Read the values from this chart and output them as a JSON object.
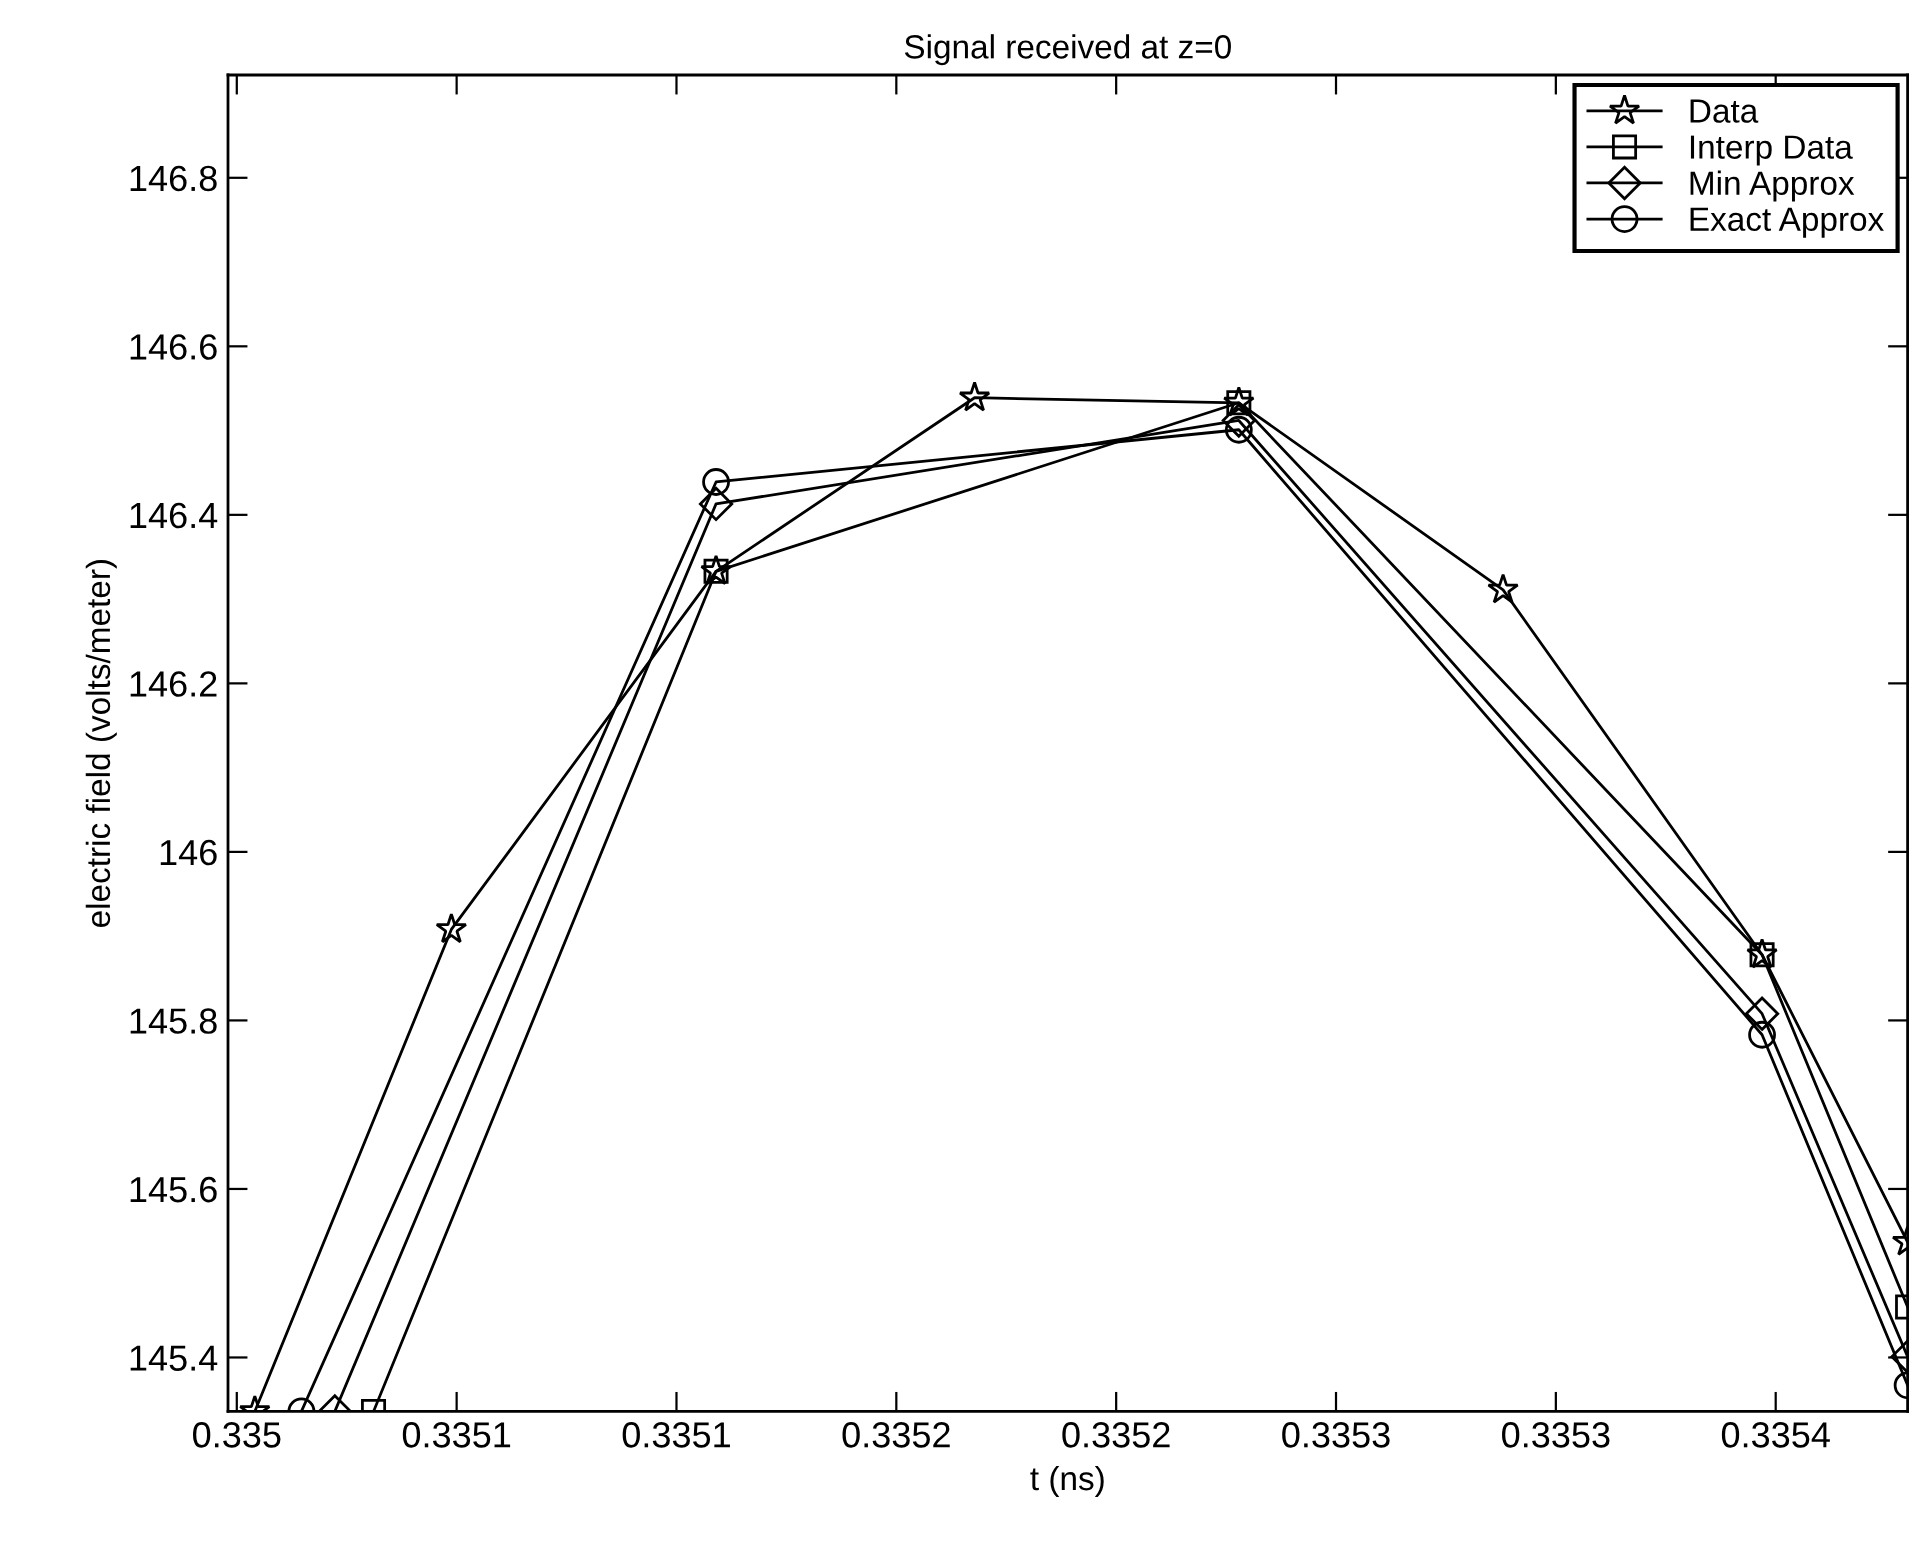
{
  "chart_data": {
    "type": "line",
    "title": "Signal received at z=0",
    "xlabel": "t (ns)",
    "ylabel": "electric field (volts/meter)",
    "xlim": [
      0.334998,
      0.33538
    ],
    "xticks": [
      {
        "value": 0.335,
        "label": "0.335"
      },
      {
        "value": 0.33505,
        "label": "0.3351"
      },
      {
        "value": 0.3351,
        "label": "0.3351"
      },
      {
        "value": 0.33515,
        "label": "0.3352"
      },
      {
        "value": 0.3352,
        "label": "0.3352"
      },
      {
        "value": 0.33525,
        "label": "0.3353"
      },
      {
        "value": 0.3353,
        "label": "0.3353"
      },
      {
        "value": 0.33535,
        "label": "0.3354"
      }
    ],
    "ylim": [
      145.336,
      146.922
    ],
    "yticks": [
      145.4,
      145.6,
      145.8,
      {
        "value": 146,
        "label": "146"
      },
      146.2,
      146.4,
      146.6,
      146.8
    ],
    "grid": false,
    "legend": "top right",
    "line_style": "solid",
    "series": [
      {
        "name": "Data",
        "color": "#000000",
        "marker": "star",
        "x": [
          0.3350041,
          0.3350488,
          0.335109,
          0.3351678,
          0.3352279,
          0.335288,
          0.3353469,
          0.33538
        ],
        "values": [
          145.336,
          145.908,
          146.333,
          146.539,
          146.533,
          146.311,
          145.878,
          145.537
        ]
      },
      {
        "name": "Interp Data",
        "color": "#000000",
        "marker": "square",
        "x": [
          0.3350311,
          0.335109,
          0.3352279,
          0.3353469,
          0.33538
        ],
        "values": [
          145.336,
          146.333,
          146.533,
          145.878,
          145.46
        ]
      },
      {
        "name": "Min Approx",
        "color": "#000000",
        "marker": "diamond",
        "x": [
          0.3350223,
          0.335109,
          0.3352279,
          0.3353469,
          0.33538
        ],
        "values": [
          145.336,
          146.413,
          146.512,
          145.808,
          145.401
        ]
      },
      {
        "name": "Exact Approx",
        "color": "#000000",
        "marker": "circle",
        "x": [
          0.3350147,
          0.335109,
          0.3352279,
          0.3353469,
          0.33538
        ],
        "values": [
          145.336,
          146.439,
          146.501,
          145.783,
          145.367
        ]
      }
    ]
  }
}
